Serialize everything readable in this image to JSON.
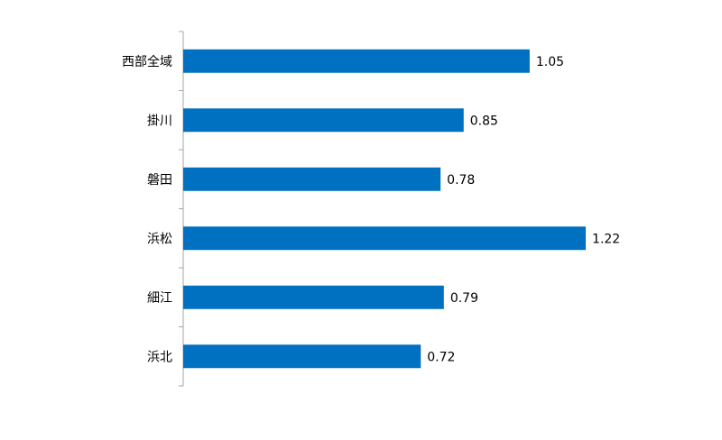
{
  "chart_data": {
    "type": "bar",
    "orientation": "horizontal",
    "categories": [
      "西部全域",
      "掛川",
      "磐田",
      "浜松",
      "細江",
      "浜北"
    ],
    "values": [
      1.05,
      0.85,
      0.78,
      1.22,
      0.79,
      0.72
    ],
    "color": "#0070c0"
  }
}
